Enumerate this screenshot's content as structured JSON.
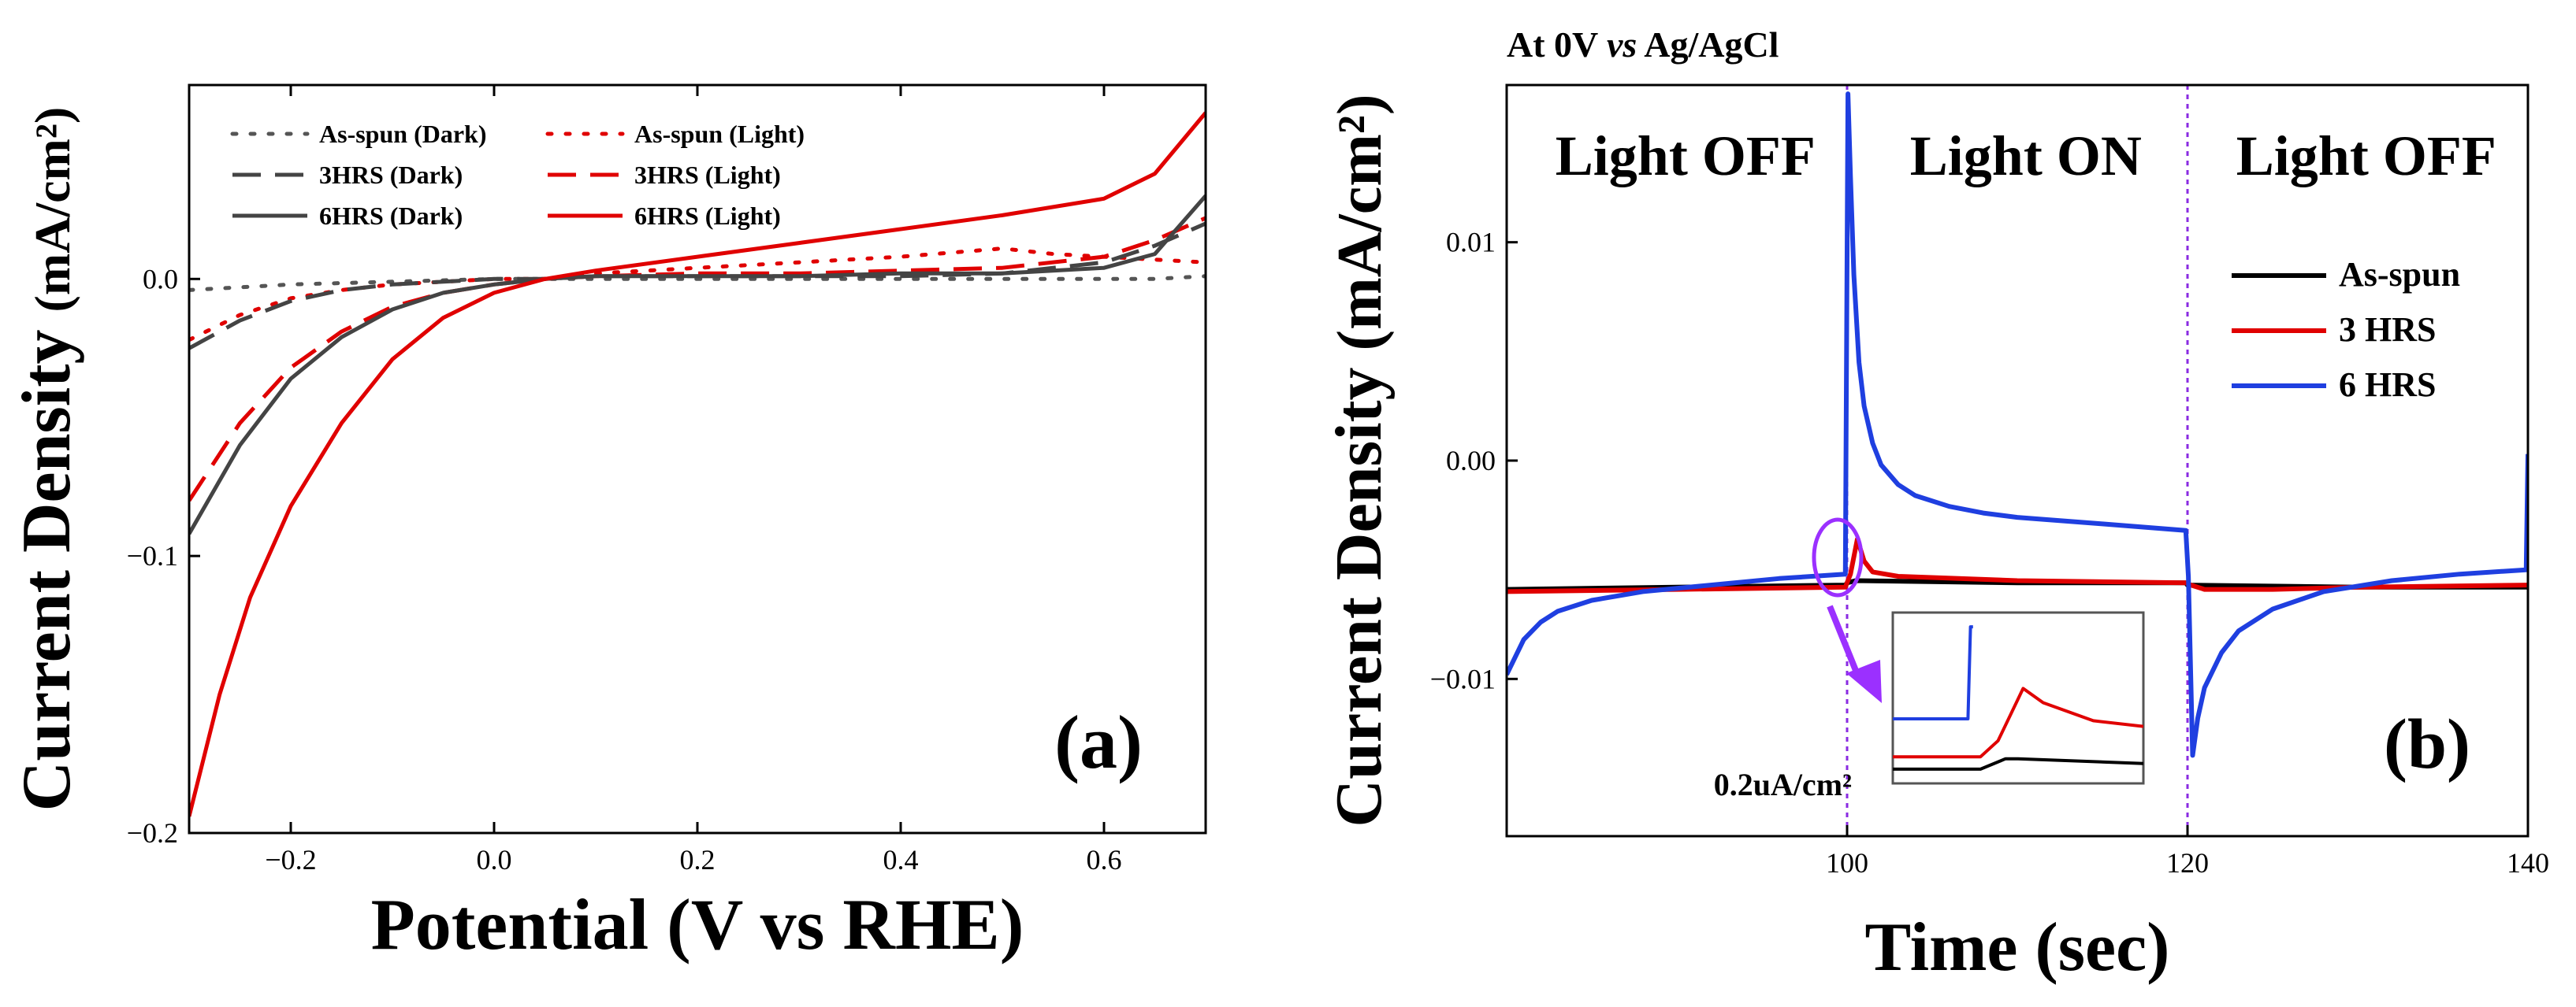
{
  "chart_data": [
    {
      "id": "a",
      "type": "line",
      "panel_label": "(a)",
      "xlabel": "Potential (V vs RHE)",
      "ylabel_main": "Current Density",
      "ylabel_unit": "(mA/cm²)",
      "xlim": [
        -0.3,
        0.7
      ],
      "ylim": [
        -0.2,
        0.07
      ],
      "xticks": [
        -0.2,
        0.0,
        0.2,
        0.4,
        0.6
      ],
      "xtick_labels": [
        "−0.2",
        "0.0",
        "0.2",
        "0.4",
        "0.6"
      ],
      "yticks": [
        -0.2,
        -0.1,
        0.0
      ],
      "ytick_labels": [
        "−0.2",
        "−0.1",
        "0.0"
      ],
      "legend_position": "top-left",
      "series": [
        {
          "name": "As-spun (Dark)",
          "color": "#555555",
          "dash": "dot",
          "x": [
            -0.3,
            -0.2,
            -0.1,
            0.0,
            0.1,
            0.2,
            0.3,
            0.4,
            0.5,
            0.6,
            0.65,
            0.7
          ],
          "y": [
            -0.004,
            -0.002,
            -0.001,
            0.0,
            0.0,
            0.0,
            0.0,
            0.0,
            0.0,
            0.0,
            0.0,
            0.001
          ]
        },
        {
          "name": "As-spun (Light)",
          "color": "#e00000",
          "dash": "dot",
          "x": [
            -0.3,
            -0.25,
            -0.2,
            -0.15,
            -0.1,
            -0.05,
            0.0,
            0.05,
            0.1,
            0.2,
            0.3,
            0.4,
            0.5,
            0.55,
            0.6,
            0.65,
            0.7
          ],
          "y": [
            -0.022,
            -0.013,
            -0.007,
            -0.004,
            -0.002,
            -0.001,
            0.0,
            0.0,
            0.002,
            0.004,
            0.006,
            0.008,
            0.011,
            0.009,
            0.008,
            0.007,
            0.006
          ]
        },
        {
          "name": "3HRS (Dark)",
          "color": "#444444",
          "dash": "dash",
          "x": [
            -0.3,
            -0.25,
            -0.2,
            -0.15,
            -0.1,
            -0.05,
            0.0,
            0.05,
            0.1,
            0.2,
            0.3,
            0.4,
            0.5,
            0.6,
            0.65,
            0.7
          ],
          "y": [
            -0.025,
            -0.015,
            -0.008,
            -0.004,
            -0.002,
            -0.001,
            0.0,
            0.0,
            0.001,
            0.001,
            0.001,
            0.001,
            0.002,
            0.006,
            0.012,
            0.02
          ]
        },
        {
          "name": "3HRS (Light)",
          "color": "#e00000",
          "dash": "dash",
          "x": [
            -0.3,
            -0.25,
            -0.2,
            -0.15,
            -0.1,
            -0.05,
            0.0,
            0.05,
            0.1,
            0.2,
            0.3,
            0.4,
            0.5,
            0.6,
            0.65,
            0.7
          ],
          "y": [
            -0.08,
            -0.052,
            -0.032,
            -0.019,
            -0.01,
            -0.005,
            -0.002,
            0.0,
            0.001,
            0.002,
            0.002,
            0.003,
            0.004,
            0.008,
            0.014,
            0.022
          ]
        },
        {
          "name": "6HRS (Dark)",
          "color": "#444444",
          "dash": "solid",
          "x": [
            -0.3,
            -0.25,
            -0.2,
            -0.15,
            -0.1,
            -0.05,
            0.0,
            0.05,
            0.1,
            0.2,
            0.3,
            0.4,
            0.5,
            0.6,
            0.65,
            0.7
          ],
          "y": [
            -0.092,
            -0.06,
            -0.036,
            -0.021,
            -0.011,
            -0.005,
            -0.002,
            0.0,
            0.001,
            0.001,
            0.001,
            0.002,
            0.002,
            0.004,
            0.009,
            0.03
          ]
        },
        {
          "name": "6HRS (Light)",
          "color": "#e00000",
          "dash": "solid",
          "x": [
            -0.3,
            -0.27,
            -0.24,
            -0.2,
            -0.15,
            -0.1,
            -0.05,
            0.0,
            0.05,
            0.1,
            0.2,
            0.3,
            0.4,
            0.5,
            0.6,
            0.65,
            0.7
          ],
          "y": [
            -0.194,
            -0.15,
            -0.115,
            -0.082,
            -0.052,
            -0.029,
            -0.014,
            -0.005,
            0.0,
            0.003,
            0.008,
            0.013,
            0.018,
            0.023,
            0.029,
            0.038,
            0.06
          ]
        }
      ]
    },
    {
      "id": "b",
      "type": "line",
      "panel_label": "(b)",
      "title": "At 0V vs Ag/AgCl",
      "title_parts": [
        "At 0V ",
        "vs",
        " Ag/AgCl"
      ],
      "xlabel": "Time (sec)",
      "ylabel_main": "Current Density",
      "ylabel_unit": "(mA/cm²)",
      "xlim": [
        80,
        140
      ],
      "ylim": [
        -0.0172,
        0.0172
      ],
      "xticks": [
        100,
        120,
        140
      ],
      "xtick_labels": [
        "100",
        "120",
        "140"
      ],
      "yticks": [
        -0.01,
        0.0,
        0.01
      ],
      "ytick_labels": [
        "−0.01",
        "0.00",
        "0.01"
      ],
      "legend_position": "right",
      "vlines": [
        100,
        120
      ],
      "region_labels": [
        {
          "text": "Light OFF",
          "x": 90.5
        },
        {
          "text": "Light ON",
          "x": 110.5
        },
        {
          "text": "Light OFF",
          "x": 130.5
        }
      ],
      "series": [
        {
          "name": "As-spun",
          "color": "#000000",
          "x": [
            80,
            90,
            99.9,
            100,
            100.5,
            110,
            119.9,
            120,
            130,
            140
          ],
          "y": [
            -0.0059,
            -0.0058,
            -0.0057,
            -0.0056,
            -0.0055,
            -0.0056,
            -0.0056,
            -0.0057,
            -0.0058,
            -0.0058
          ]
        },
        {
          "name": "3 HRS",
          "color": "#e00000",
          "x": [
            80,
            90,
            99.9,
            100.2,
            100.6,
            101,
            101.5,
            103,
            110,
            119.9,
            120.2,
            121,
            125,
            130,
            140
          ],
          "y": [
            -0.006,
            -0.0059,
            -0.0058,
            -0.0052,
            -0.0036,
            -0.0046,
            -0.0051,
            -0.0053,
            -0.0055,
            -0.0056,
            -0.0057,
            -0.0059,
            -0.0059,
            -0.0058,
            -0.0057
          ]
        },
        {
          "name": "6 HRS",
          "color": "#1f3fe0",
          "x": [
            80,
            81,
            82,
            83,
            85,
            88,
            92,
            96,
            99.9,
            100.05,
            100.2,
            100.4,
            100.7,
            101,
            101.5,
            102,
            103,
            104,
            106,
            108,
            110,
            115,
            119.9,
            120.05,
            120.3,
            120.6,
            121,
            122,
            123,
            125,
            128,
            132,
            136,
            139.9,
            140
          ],
          "y": [
            -0.0098,
            -0.0082,
            -0.0074,
            -0.0069,
            -0.0064,
            -0.006,
            -0.0057,
            -0.0054,
            -0.0052,
            0.0168,
            0.013,
            0.0085,
            0.0045,
            0.0025,
            0.0008,
            -0.0002,
            -0.0011,
            -0.0016,
            -0.0021,
            -0.0024,
            -0.0026,
            -0.0029,
            -0.0032,
            -0.0053,
            -0.0135,
            -0.0118,
            -0.0104,
            -0.0088,
            -0.0078,
            -0.0068,
            -0.006,
            -0.0055,
            -0.0052,
            -0.005,
            0.0003
          ]
        }
      ],
      "inset": {
        "scale_label": "0.2uA/cm²",
        "series": [
          {
            "name": "As-spun",
            "color": "#000000",
            "x": [
              0,
              0.35,
              0.45,
              0.5,
              1.0
            ],
            "y": [
              -0.0075,
              -0.0075,
              -0.0064,
              -0.0064,
              -0.0069
            ]
          },
          {
            "name": "3 HRS",
            "color": "#e00000",
            "x": [
              0,
              0.35,
              0.42,
              0.52,
              0.6,
              0.8,
              1.0
            ],
            "y": [
              -0.0062,
              -0.0062,
              -0.0045,
              0.001,
              -0.0005,
              -0.0024,
              -0.003
            ]
          },
          {
            "name": "6 HRS",
            "color": "#1f3fe0",
            "x": [
              0,
              0.3,
              0.31,
              0.32
            ],
            "y": [
              -0.0022,
              -0.0022,
              0.0075,
              0.0075
            ]
          }
        ]
      }
    }
  ]
}
